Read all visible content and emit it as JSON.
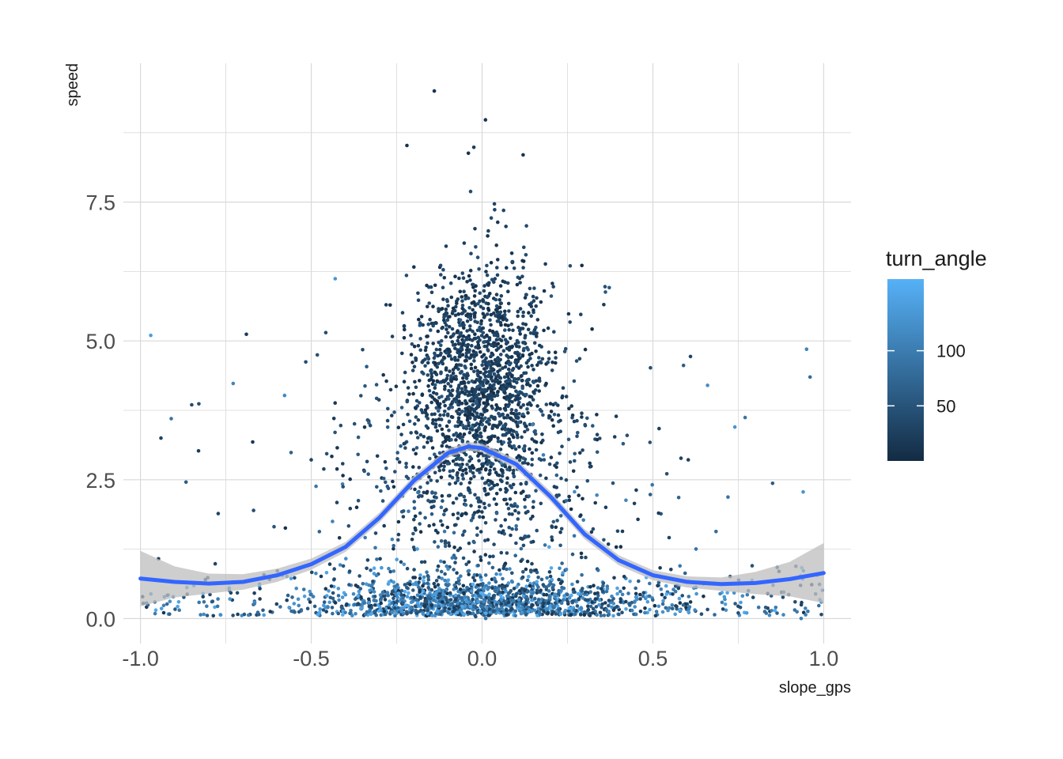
{
  "chart_data": {
    "type": "scatter",
    "title": "",
    "xlabel": "slope_gps",
    "ylabel": "speed",
    "xlim": [
      -1.05,
      1.08
    ],
    "ylim": [
      -0.45,
      10.0
    ],
    "x_ticks": [
      -1.0,
      -0.5,
      0.0,
      0.5,
      1.0
    ],
    "x_tick_labels": [
      "-1.0",
      "-0.5",
      "0.0",
      "0.5",
      "1.0"
    ],
    "y_ticks": [
      0.0,
      2.5,
      5.0,
      7.5
    ],
    "y_tick_labels": [
      "0.0",
      "2.5",
      "5.0",
      "7.5"
    ],
    "grid": true,
    "legend": {
      "title": "turn_angle",
      "placement": "right",
      "type": "colorbar",
      "range": [
        0,
        165
      ],
      "ticks": [
        50,
        100
      ],
      "tick_labels": [
        "50",
        "100"
      ],
      "color_low": "#132b43",
      "color_high": "#56b1f7"
    },
    "colors": {
      "smooth_line": "#3366ff",
      "confidence_band": "#bdbdbd",
      "grid": "#d9d9d9"
    },
    "points_notable": [
      {
        "x": -0.97,
        "y": 5.1,
        "turn_angle": 140
      },
      {
        "x": -0.69,
        "y": 5.12,
        "turn_angle": 20
      },
      {
        "x": -0.43,
        "y": 6.12,
        "turn_angle": 130
      },
      {
        "x": -0.14,
        "y": 9.5,
        "turn_angle": 10
      },
      {
        "x": 0.01,
        "y": 8.98,
        "turn_angle": 10
      },
      {
        "x": -0.22,
        "y": 8.52,
        "turn_angle": 10
      },
      {
        "x": -0.04,
        "y": 8.38,
        "turn_angle": 10
      },
      {
        "x": 0.12,
        "y": 8.35,
        "turn_angle": 10
      },
      {
        "x": 0.61,
        "y": 4.72,
        "turn_angle": 30
      },
      {
        "x": 0.66,
        "y": 4.2,
        "turn_angle": 120
      },
      {
        "x": 0.95,
        "y": 4.85,
        "turn_angle": 110
      },
      {
        "x": 0.96,
        "y": 4.35,
        "turn_angle": 80
      },
      {
        "x": 0.74,
        "y": 3.45,
        "turn_angle": 130
      },
      {
        "x": 0.77,
        "y": 3.62,
        "turn_angle": 90
      },
      {
        "x": -0.91,
        "y": 3.6,
        "turn_angle": 90
      },
      {
        "x": -0.94,
        "y": 3.25,
        "turn_angle": 30
      },
      {
        "x": -0.85,
        "y": 3.85,
        "turn_angle": 40
      },
      {
        "x": -0.83,
        "y": 3.02,
        "turn_angle": 20
      },
      {
        "x": 0.94,
        "y": 2.28,
        "turn_angle": 130
      }
    ],
    "series": [
      {
        "type": "smooth",
        "x": [
          -1.0,
          -0.9,
          -0.8,
          -0.7,
          -0.6,
          -0.5,
          -0.4,
          -0.3,
          -0.2,
          -0.1,
          -0.04,
          0.0,
          0.1,
          0.2,
          0.3,
          0.4,
          0.5,
          0.6,
          0.7,
          0.8,
          0.9,
          1.0
        ],
        "y": [
          0.72,
          0.66,
          0.63,
          0.66,
          0.78,
          0.98,
          1.29,
          1.82,
          2.48,
          2.98,
          3.1,
          3.07,
          2.78,
          2.2,
          1.52,
          1.05,
          0.78,
          0.66,
          0.62,
          0.64,
          0.71,
          0.82
        ],
        "ci_lower": [
          0.22,
          0.38,
          0.45,
          0.52,
          0.66,
          0.88,
          1.2,
          1.73,
          2.39,
          2.9,
          3.02,
          2.99,
          2.69,
          2.11,
          1.43,
          0.96,
          0.69,
          0.56,
          0.5,
          0.44,
          0.4,
          0.28
        ],
        "ci_upper": [
          1.22,
          0.94,
          0.81,
          0.8,
          0.9,
          1.08,
          1.38,
          1.91,
          2.57,
          3.06,
          3.18,
          3.15,
          2.87,
          2.29,
          1.61,
          1.14,
          0.87,
          0.76,
          0.74,
          0.84,
          1.02,
          1.36
        ]
      }
    ]
  }
}
